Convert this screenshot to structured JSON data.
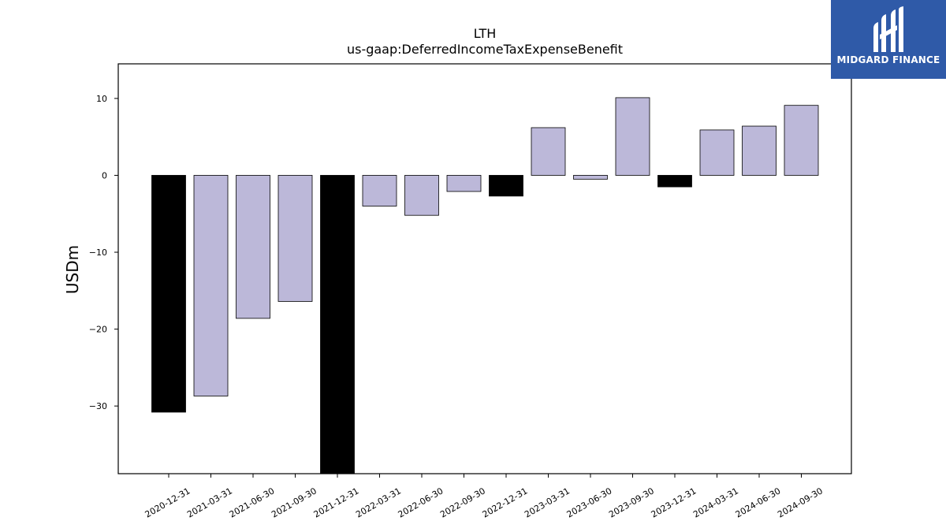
{
  "chart_data": {
    "type": "bar",
    "title": "LTH",
    "subtitle": "us-gaap:DeferredIncomeTaxExpenseBenefit",
    "xlabel": "",
    "ylabel": "USDm",
    "ylim": [
      -38.8,
      14.5
    ],
    "yticks": [
      10,
      0,
      -10,
      -20,
      -30
    ],
    "ytick_labels": [
      "10",
      "0",
      "−10",
      "−20",
      "−30"
    ],
    "categories": [
      "2020-12-31",
      "2021-03-31",
      "2021-06-30",
      "2021-09-30",
      "2021-12-31",
      "2022-03-31",
      "2022-06-30",
      "2022-09-30",
      "2022-12-31",
      "2023-03-31",
      "2023-06-30",
      "2023-09-30",
      "2023-12-31",
      "2024-03-31",
      "2024-06-30",
      "2024-09-30"
    ],
    "values": [
      -30.8,
      -28.7,
      -18.6,
      -16.4,
      -40.0,
      -4.0,
      -5.2,
      -2.1,
      -2.7,
      6.2,
      -0.5,
      10.1,
      -1.5,
      5.9,
      6.4,
      9.1
    ],
    "highlight": [
      true,
      false,
      false,
      false,
      true,
      false,
      false,
      false,
      true,
      false,
      false,
      false,
      true,
      false,
      false,
      false
    ],
    "colors": {
      "quarter": "#bcb8d9",
      "year_end": "#000000",
      "edge": "#000000"
    },
    "grid": false,
    "legend": "none"
  },
  "logo": {
    "text": "MIDGARD FINANCE",
    "background": "#2f5aa8",
    "icon": "midgard-logo-icon"
  }
}
